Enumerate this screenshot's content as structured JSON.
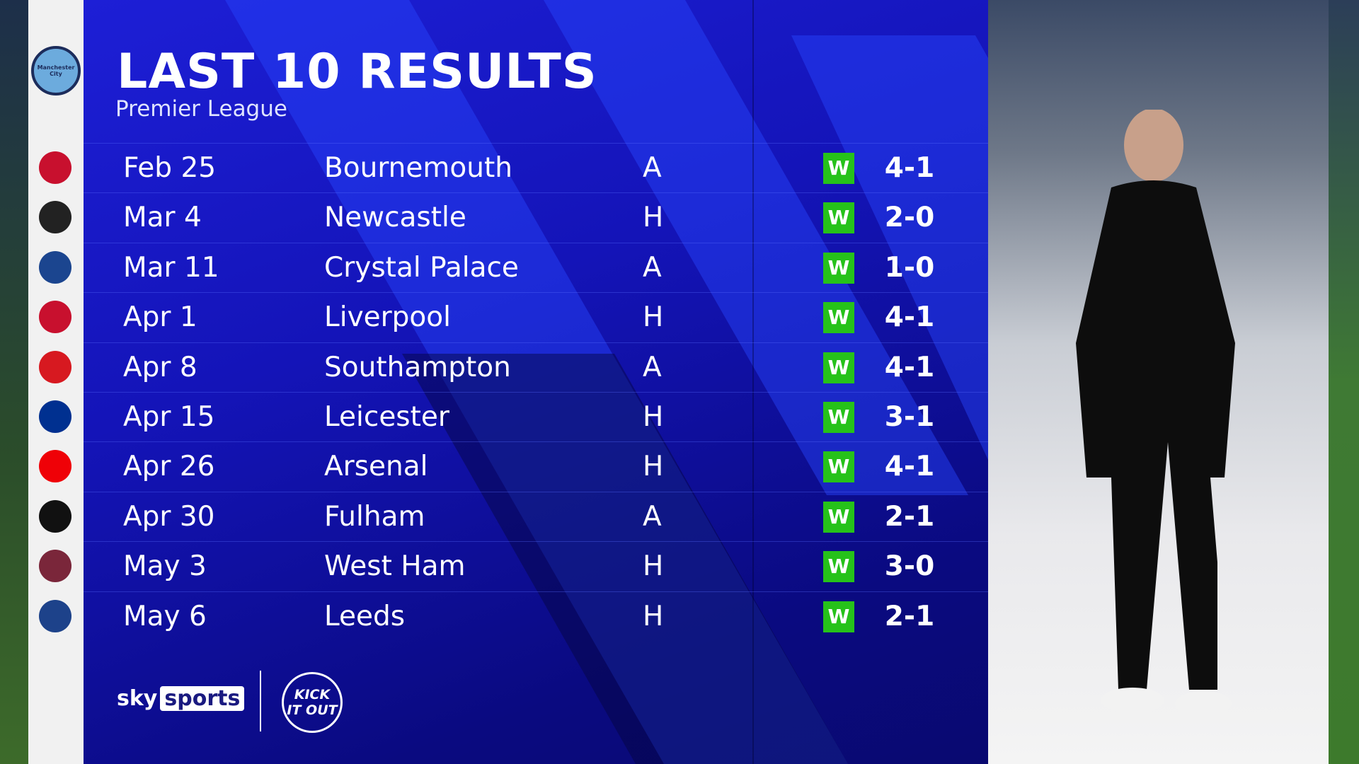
{
  "header": {
    "title": "LAST 10 RESULTS",
    "subtitle": "Premier League"
  },
  "team": {
    "name": "Manchester City",
    "crest_icon": "man-city-crest"
  },
  "colors": {
    "panel": "#1414b8",
    "win": "#26c21a"
  },
  "results": [
    {
      "date": "Feb 25",
      "opponent": "Bournemouth",
      "venue": "A",
      "result": "W",
      "score": "4-1",
      "crest": "#c8102e"
    },
    {
      "date": "Mar 4",
      "opponent": "Newcastle",
      "venue": "H",
      "result": "W",
      "score": "2-0",
      "crest": "#222222"
    },
    {
      "date": "Mar 11",
      "opponent": "Crystal Palace",
      "venue": "A",
      "result": "W",
      "score": "1-0",
      "crest": "#1b458f"
    },
    {
      "date": "Apr 1",
      "opponent": "Liverpool",
      "venue": "H",
      "result": "W",
      "score": "4-1",
      "crest": "#c8102e"
    },
    {
      "date": "Apr 8",
      "opponent": "Southampton",
      "venue": "A",
      "result": "W",
      "score": "4-1",
      "crest": "#d71920"
    },
    {
      "date": "Apr 15",
      "opponent": "Leicester",
      "venue": "H",
      "result": "W",
      "score": "3-1",
      "crest": "#003090"
    },
    {
      "date": "Apr 26",
      "opponent": "Arsenal",
      "venue": "H",
      "result": "W",
      "score": "4-1",
      "crest": "#ef0107"
    },
    {
      "date": "Apr 30",
      "opponent": "Fulham",
      "venue": "A",
      "result": "W",
      "score": "2-1",
      "crest": "#111111"
    },
    {
      "date": "May 3",
      "opponent": "West Ham",
      "venue": "H",
      "result": "W",
      "score": "3-0",
      "crest": "#7a263a"
    },
    {
      "date": "May 6",
      "opponent": "Leeds",
      "venue": "H",
      "result": "W",
      "score": "2-1",
      "crest": "#1d428a"
    }
  ],
  "footer": {
    "sky": "sky",
    "sports": "sports",
    "kick_it_out": "KICK IT OUT"
  }
}
